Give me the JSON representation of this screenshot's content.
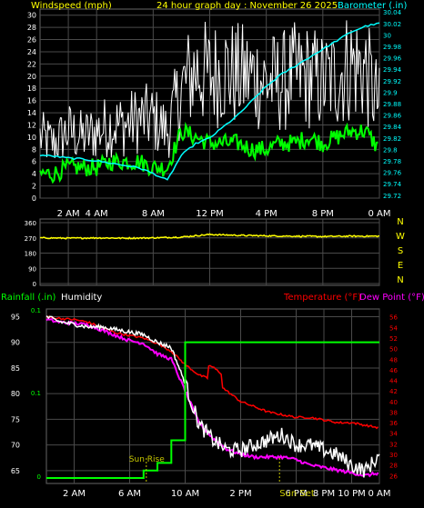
{
  "header": {
    "top_left": "Windspeed (mph)",
    "top_center": "24 hour graph day : November 26 2025",
    "top_right": "Barometer (.in)"
  },
  "bottom_header": {
    "left_rain": "Rainfall (.in)",
    "left_humidity": "Humidity",
    "right_temp": "Temperature (°F)",
    "right_dew": "Dew Point (°F)"
  },
  "colors": {
    "wind_gust": "#ffffff",
    "wind_avg": "#00ff00",
    "barometer": "#00ffff",
    "direction": "#ffff00",
    "humidity": "#ffffff",
    "rain": "#00ff00",
    "temperature": "#ff0000",
    "dew_point": "#ff00ff",
    "sun": "#c8c800",
    "grid": "#4a4a4a",
    "axis_label": "#ffff00"
  },
  "chart_data": [
    {
      "id": "wind_baro",
      "type": "line",
      "title": "24 hour graph day : November 26 2025",
      "ylabel": "Windspeed (mph)",
      "y2label": "Barometer (.in)",
      "ylim": [
        0,
        31
      ],
      "y2lim": [
        29.715,
        30.045
      ],
      "yticks": [
        "0",
        "2",
        "4",
        "6",
        "8",
        "10",
        "12",
        "14",
        "16",
        "18",
        "20",
        "22",
        "24",
        "26",
        "28",
        "30"
      ],
      "y2ticks": [
        "29.72",
        "29.74",
        "29.76",
        "29.78",
        "29.8",
        "29.82",
        "29.84",
        "29.86",
        "29.88",
        "29.9",
        "29.92",
        "29.94",
        "29.96",
        "29.98",
        "30",
        "30.02",
        "30.04"
      ],
      "xticks": [
        "2 AM",
        "4 AM",
        "8 AM",
        "12 PM",
        "4 PM",
        "8 PM",
        "0 AM"
      ],
      "xtick_hours": [
        2,
        4,
        8,
        12,
        16,
        20,
        24
      ],
      "x_hours": [
        0,
        1,
        2,
        3,
        4,
        5,
        6,
        7,
        8,
        9,
        10,
        11,
        12,
        13,
        14,
        15,
        16,
        17,
        18,
        19,
        20,
        21,
        22,
        23,
        24
      ],
      "series": [
        {
          "role": "gust",
          "values": [
            10,
            9,
            11,
            10,
            11,
            12,
            12,
            13,
            13,
            11,
            18,
            21,
            20,
            21,
            20,
            20,
            19,
            19,
            20,
            20,
            19,
            20,
            22,
            21,
            15
          ]
        },
        {
          "role": "average",
          "values": [
            4,
            4,
            5,
            5,
            5,
            6,
            6,
            6,
            5,
            5,
            11,
            10,
            9,
            9,
            9,
            8,
            8,
            9,
            9,
            10,
            9,
            10,
            11,
            11,
            8
          ]
        },
        {
          "role": "barometer",
          "axis": "right",
          "values": [
            29.79,
            29.788,
            29.785,
            29.783,
            29.78,
            29.776,
            29.772,
            29.768,
            29.758,
            29.746,
            29.79,
            29.81,
            29.82,
            29.84,
            29.86,
            29.885,
            29.91,
            29.93,
            29.945,
            29.96,
            29.975,
            29.99,
            30.005,
            30.015,
            30.02
          ]
        }
      ]
    },
    {
      "id": "direction",
      "type": "line",
      "yticks": [
        "360",
        "270",
        "180",
        "90",
        "0"
      ],
      "ylim": [
        0,
        360
      ],
      "compass": [
        "N",
        "W",
        "S",
        "E",
        "N"
      ],
      "x_hours": [
        0,
        2,
        4,
        6,
        8,
        10,
        12,
        14,
        16,
        18,
        20,
        22,
        24
      ],
      "values": [
        270,
        268,
        270,
        268,
        270,
        275,
        290,
        285,
        282,
        280,
        278,
        280,
        280
      ]
    },
    {
      "id": "humidity_temp",
      "type": "line",
      "yticks": [
        "65",
        "70",
        "75",
        "80",
        "85",
        "90",
        "95"
      ],
      "ylim": [
        62.5,
        96.5
      ],
      "y2ticks": [
        "26",
        "28",
        "30",
        "32",
        "34",
        "36",
        "38",
        "40",
        "42",
        "44",
        "46",
        "48",
        "50",
        "52",
        "54",
        "56"
      ],
      "y2lim": [
        24.5,
        57.5
      ],
      "rain_ticks": [
        "0.1",
        "0.1",
        "0"
      ],
      "xticks": [
        "2 AM",
        "6 AM",
        "10 AM",
        "2 PM",
        "6 PM",
        "8 PM",
        "10 PM",
        "0 AM"
      ],
      "xtick_hours": [
        2,
        6,
        10,
        14,
        18,
        20,
        22,
        24
      ],
      "annotations": [
        {
          "text": "Sun Rise",
          "hour": 7.2
        },
        {
          "text": "Sun Set",
          "hour": 16.8
        }
      ],
      "x_hours": [
        0,
        1,
        2,
        3,
        4,
        5,
        6,
        7,
        8,
        9,
        10,
        11,
        12,
        13,
        14,
        15,
        16,
        17,
        18,
        19,
        20,
        21,
        22,
        23,
        24
      ],
      "series": [
        {
          "role": "humidity",
          "values": [
            95,
            94,
            93.5,
            93,
            93,
            92.5,
            92,
            91.5,
            90,
            89,
            82,
            74,
            71,
            69,
            69,
            70,
            71,
            72,
            70,
            70,
            69,
            68,
            66,
            65,
            68
          ]
        },
        {
          "role": "temperature",
          "axis": "right",
          "values": [
            56,
            55.7,
            55.5,
            55,
            54,
            53,
            52.5,
            52,
            51,
            49.5,
            47,
            45,
            44,
            42,
            40,
            39,
            38,
            37.5,
            37,
            37,
            36.5,
            36,
            36,
            35.5,
            35
          ]
        },
        {
          "role": "dew_point",
          "axis": "right",
          "values": [
            55.5,
            55,
            54.8,
            54.5,
            53.5,
            52.5,
            51.5,
            51,
            49,
            48,
            42,
            36,
            33,
            31,
            30,
            29.5,
            29.5,
            29.5,
            29,
            28,
            27.5,
            27,
            26.5,
            26,
            26.5
          ]
        },
        {
          "role": "rainfall",
          "values": [
            0,
            0,
            0,
            0,
            0,
            0,
            0,
            0.01,
            0.02,
            0.05,
            0.18,
            0.18,
            0.18,
            0.18,
            0.18,
            0.18,
            0.18,
            0.18,
            0.18,
            0.18,
            0.18,
            0.18,
            0.18,
            0.18,
            0.18
          ]
        }
      ],
      "rain_lim": [
        0,
        0.2
      ]
    }
  ]
}
